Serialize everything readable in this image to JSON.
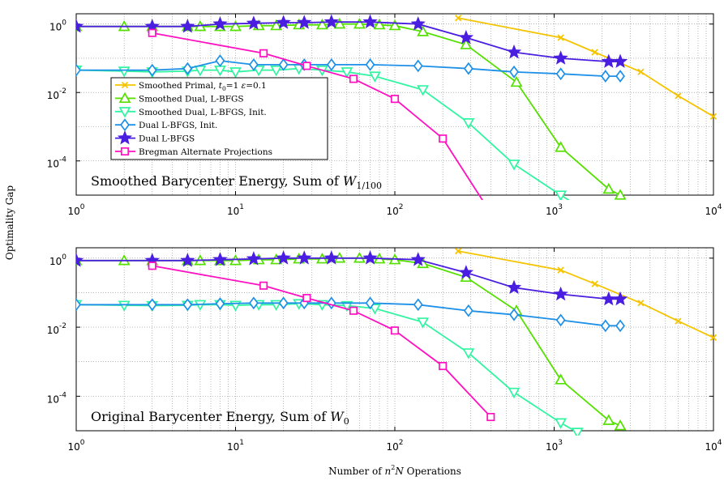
{
  "figure": {
    "ylabel": "Optimality Gap",
    "xlabel_parts": [
      "Number of ",
      "n",
      "2",
      "N",
      " Operations"
    ]
  },
  "colors": {
    "smoothed_primal": "#f5c400",
    "smoothed_dual": "#55e000",
    "smoothed_dual_init": "#30f5a0",
    "dual_init": "#1e90e8",
    "dual": "#4a1ee0",
    "bregman": "#ff10c0",
    "grid": "#888888"
  },
  "chart_data": [
    {
      "type": "line",
      "xscale": "log",
      "yscale": "log",
      "xlim": [
        1,
        10000
      ],
      "ylim": [
        1e-05,
        2
      ],
      "x_ticks": [
        {
          "base": "10",
          "exp": "0"
        },
        {
          "base": "10",
          "exp": "1"
        },
        {
          "base": "10",
          "exp": "2"
        },
        {
          "base": "10",
          "exp": "3"
        },
        {
          "base": "10",
          "exp": "4"
        }
      ],
      "y_ticks": [
        {
          "base": "10",
          "exp": "0"
        },
        {
          "base": "10",
          "exp": "-2"
        },
        {
          "base": "10",
          "exp": "-4"
        }
      ],
      "grid": "on",
      "legend_position": "upper-left",
      "annotation_parts": [
        "Smoothed Barycenter Energy, Sum of ",
        "W",
        "1/100"
      ],
      "series": [
        {
          "name_parts": [
            "Smoothed Primal, ",
            "t",
            "0",
            "=1 ",
            "ε",
            "=0.1"
          ],
          "marker": "x",
          "color_key": "smoothed_primal",
          "x": [
            250,
            1100,
            1800,
            3500,
            6000,
            10000
          ],
          "y": [
            1.5,
            0.4,
            0.15,
            0.04,
            0.008,
            0.002
          ]
        },
        {
          "name": "Smoothed Dual, L-BFGS",
          "marker": "triangle-up",
          "color_key": "smoothed_dual",
          "x": [
            1,
            2,
            3,
            5,
            6,
            8,
            10,
            14,
            18,
            25,
            35,
            45,
            60,
            80,
            100,
            150,
            280,
            580,
            1100,
            2200,
            2600
          ],
          "y": [
            0.85,
            0.85,
            0.85,
            0.85,
            0.85,
            0.85,
            0.85,
            0.9,
            0.9,
            0.95,
            0.95,
            1.0,
            1.0,
            0.95,
            0.9,
            0.6,
            0.25,
            0.02,
            0.00025,
            1.5e-05,
            1e-05
          ]
        },
        {
          "name": "Smoothed Dual, L-BFGS, Init.",
          "marker": "triangle-down",
          "color_key": "smoothed_dual_init",
          "x": [
            1,
            2,
            3,
            5,
            6,
            8,
            10,
            14,
            18,
            25,
            35,
            50,
            75,
            150,
            290,
            560,
            1100,
            1400
          ],
          "y": [
            0.045,
            0.042,
            0.04,
            0.042,
            0.045,
            0.045,
            0.04,
            0.045,
            0.045,
            0.05,
            0.045,
            0.04,
            0.03,
            0.012,
            0.0013,
            8e-05,
            1e-05,
            5e-06
          ]
        },
        {
          "name": "Dual L-BFGS, Init.",
          "marker": "diamond",
          "color_key": "dual_init",
          "x": [
            1,
            3,
            5,
            8,
            13,
            20,
            27,
            40,
            70,
            140,
            290,
            560,
            1100,
            2100,
            2600
          ],
          "y": [
            0.045,
            0.045,
            0.05,
            0.085,
            0.065,
            0.065,
            0.065,
            0.065,
            0.065,
            0.06,
            0.05,
            0.04,
            0.035,
            0.03,
            0.03
          ]
        },
        {
          "name": "Dual L-BFGS",
          "marker": "star",
          "color_key": "dual",
          "x": [
            1,
            3,
            5,
            8,
            13,
            20,
            27,
            40,
            70,
            140,
            280,
            560,
            1100,
            2200,
            2600
          ],
          "y": [
            0.85,
            0.85,
            0.85,
            1.0,
            1.05,
            1.1,
            1.1,
            1.15,
            1.15,
            1.0,
            0.4,
            0.15,
            0.1,
            0.08,
            0.08
          ]
        },
        {
          "name": "Bregman Alternate Projections",
          "marker": "square",
          "color_key": "bregman",
          "x": [
            3,
            15,
            28,
            55,
            100,
            200,
            400
          ],
          "y": [
            0.55,
            0.14,
            0.06,
            0.025,
            0.0065,
            0.00045,
            3e-06
          ]
        }
      ]
    },
    {
      "type": "line",
      "xscale": "log",
      "yscale": "log",
      "xlim": [
        1,
        10000
      ],
      "ylim": [
        1e-05,
        2
      ],
      "x_ticks": [
        {
          "base": "10",
          "exp": "0"
        },
        {
          "base": "10",
          "exp": "1"
        },
        {
          "base": "10",
          "exp": "2"
        },
        {
          "base": "10",
          "exp": "3"
        },
        {
          "base": "10",
          "exp": "4"
        }
      ],
      "y_ticks": [
        {
          "base": "10",
          "exp": "0"
        },
        {
          "base": "10",
          "exp": "-2"
        },
        {
          "base": "10",
          "exp": "-4"
        }
      ],
      "grid": "on",
      "annotation_parts": [
        "Original Barycenter Energy, Sum of ",
        "W",
        "0"
      ],
      "series": [
        {
          "name": "Smoothed Primal",
          "marker": "x",
          "color_key": "smoothed_primal",
          "x": [
            250,
            1100,
            1800,
            3500,
            6000,
            10000
          ],
          "y": [
            1.6,
            0.45,
            0.18,
            0.05,
            0.015,
            0.005
          ]
        },
        {
          "name": "Smoothed Dual, L-BFGS",
          "marker": "triangle-up",
          "color_key": "smoothed_dual",
          "x": [
            1,
            2,
            3,
            5,
            6,
            8,
            10,
            14,
            18,
            25,
            35,
            45,
            60,
            80,
            100,
            150,
            280,
            580,
            1100,
            2200,
            2600
          ],
          "y": [
            0.85,
            0.85,
            0.85,
            0.85,
            0.85,
            0.85,
            0.85,
            0.9,
            0.9,
            0.95,
            0.95,
            1.0,
            1.0,
            0.95,
            0.9,
            0.7,
            0.28,
            0.03,
            0.0003,
            2e-05,
            1.4e-05
          ]
        },
        {
          "name": "Smoothed Dual, L-BFGS, Init.",
          "marker": "triangle-down",
          "color_key": "smoothed_dual_init",
          "x": [
            1,
            2,
            3,
            5,
            6,
            8,
            10,
            14,
            18,
            25,
            35,
            50,
            75,
            150,
            290,
            560,
            1100,
            1400
          ],
          "y": [
            0.045,
            0.043,
            0.042,
            0.043,
            0.045,
            0.045,
            0.043,
            0.045,
            0.045,
            0.048,
            0.045,
            0.042,
            0.035,
            0.014,
            0.0018,
            0.00013,
            1.7e-05,
            9e-06
          ]
        },
        {
          "name": "Dual L-BFGS, Init.",
          "marker": "diamond",
          "color_key": "dual_init",
          "x": [
            1,
            3,
            5,
            8,
            13,
            20,
            27,
            40,
            70,
            140,
            290,
            560,
            1100,
            2100,
            2600
          ],
          "y": [
            0.045,
            0.045,
            0.045,
            0.048,
            0.05,
            0.05,
            0.05,
            0.05,
            0.05,
            0.045,
            0.03,
            0.023,
            0.016,
            0.011,
            0.011
          ]
        },
        {
          "name": "Dual L-BFGS",
          "marker": "star",
          "color_key": "dual",
          "x": [
            1,
            3,
            5,
            8,
            13,
            20,
            27,
            40,
            70,
            140,
            280,
            560,
            1100,
            2200,
            2600
          ],
          "y": [
            0.85,
            0.85,
            0.85,
            0.9,
            0.95,
            1.0,
            1.0,
            1.0,
            1.0,
            0.9,
            0.38,
            0.14,
            0.09,
            0.065,
            0.065
          ]
        },
        {
          "name": "Bregman Alternate Projections",
          "marker": "square",
          "color_key": "bregman",
          "x": [
            3,
            15,
            28,
            55,
            100,
            200,
            400
          ],
          "y": [
            0.6,
            0.16,
            0.07,
            0.03,
            0.008,
            0.00075,
            2.5e-05
          ]
        }
      ]
    }
  ]
}
